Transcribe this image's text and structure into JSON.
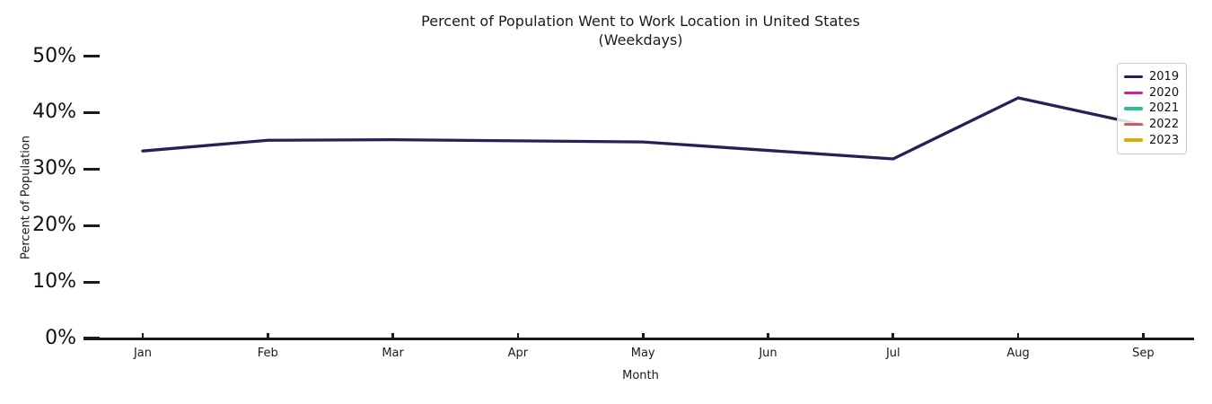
{
  "title": {
    "line1": "Percent of Population Went to Work Location in United States",
    "line2": "(Weekdays)"
  },
  "chart_data": {
    "type": "line",
    "title": "Percent of Population Went to Work Location in United States (Weekdays)",
    "xlabel": "Month",
    "ylabel": "Percent of Population",
    "categories": [
      "Jan",
      "Feb",
      "Mar",
      "Apr",
      "May",
      "Jun",
      "Jul",
      "Aug",
      "Sep"
    ],
    "y_ticks": [
      {
        "value": 0,
        "label": "0%"
      },
      {
        "value": 10,
        "label": "10%"
      },
      {
        "value": 20,
        "label": "20%"
      },
      {
        "value": 30,
        "label": "30%"
      },
      {
        "value": 40,
        "label": "40%"
      },
      {
        "value": 50,
        "label": "50%"
      }
    ],
    "ylim": [
      0,
      50
    ],
    "grid": false,
    "legend_position": "upper right",
    "axis_color": "#1a1a1a",
    "series": [
      {
        "name": "2019",
        "color": "#252253",
        "values": [
          33.2,
          35.1,
          35.2,
          35.0,
          34.8,
          33.3,
          31.8,
          42.6,
          37.8
        ]
      },
      {
        "name": "2020",
        "color": "#c9298c",
        "values": []
      },
      {
        "name": "2021",
        "color": "#2abf9b",
        "values": []
      },
      {
        "name": "2022",
        "color": "#cd5c5c",
        "values": []
      },
      {
        "name": "2023",
        "color": "#e0a912",
        "values": []
      }
    ]
  }
}
